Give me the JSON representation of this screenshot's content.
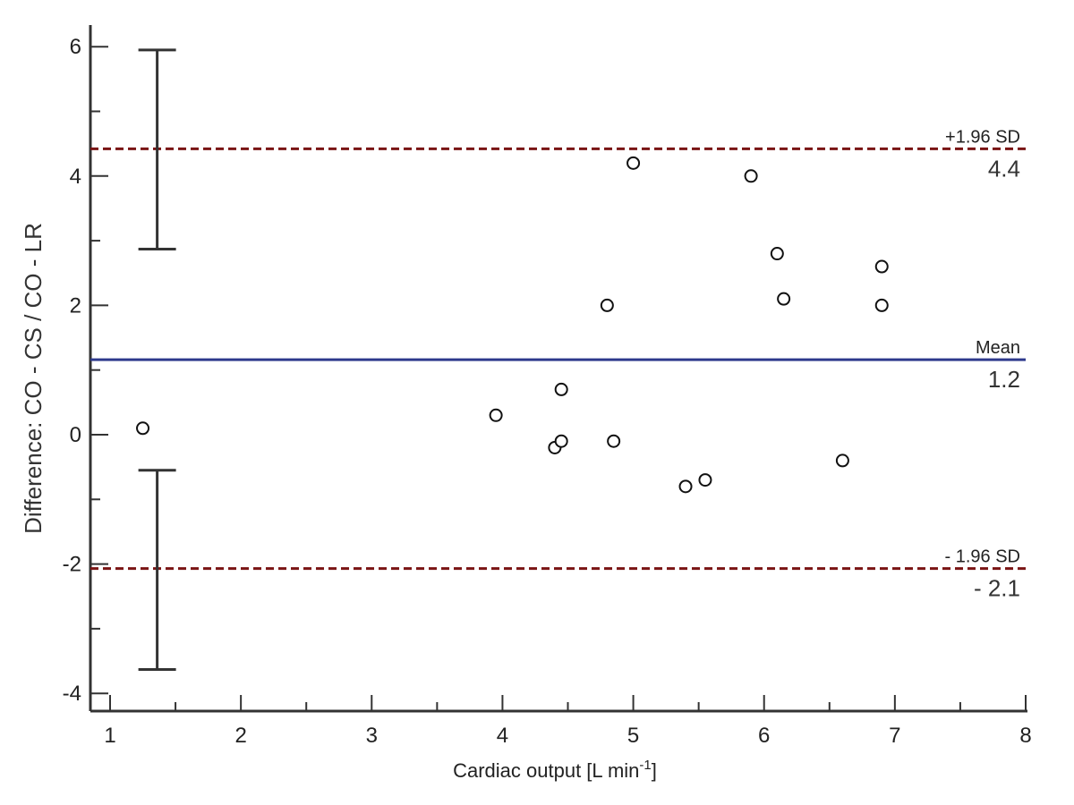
{
  "chart_data": {
    "type": "scatter",
    "xlabel": "Cardiac output  [L min",
    "xlabel_sup": "-1",
    "xlabel_close": "]",
    "ylabel": "Difference: CO - CS / CO - LR",
    "xlim": [
      1,
      8
    ],
    "ylim": [
      -4.3,
      6.5
    ],
    "x_ticks": [
      "1",
      "2",
      "3",
      "4",
      "5",
      "6",
      "7",
      "8"
    ],
    "y_ticks": [
      "-4",
      "-2",
      "0",
      "2",
      "4",
      "6"
    ],
    "points": [
      {
        "x": 1.25,
        "y": 0.1
      },
      {
        "x": 3.95,
        "y": 0.3
      },
      {
        "x": 4.4,
        "y": -0.2
      },
      {
        "x": 4.45,
        "y": -0.1
      },
      {
        "x": 4.45,
        "y": 0.7
      },
      {
        "x": 4.8,
        "y": 2.0
      },
      {
        "x": 4.85,
        "y": -0.1
      },
      {
        "x": 5.0,
        "y": 4.2
      },
      {
        "x": 5.4,
        "y": -0.8
      },
      {
        "x": 5.55,
        "y": -0.7
      },
      {
        "x": 5.9,
        "y": 4.0
      },
      {
        "x": 6.1,
        "y": 2.8
      },
      {
        "x": 6.15,
        "y": 2.1
      },
      {
        "x": 6.6,
        "y": -0.4
      },
      {
        "x": 6.9,
        "y": 2.6
      },
      {
        "x": 6.9,
        "y": 2.0
      }
    ],
    "mean": {
      "label": "Mean",
      "value": 1.16,
      "value_label": "1.2",
      "color": "#2e3a8c"
    },
    "upper_loa": {
      "label": "+1.96 SD",
      "value": 4.42,
      "value_label": "4.4",
      "color": "#7a1414"
    },
    "lower_loa": {
      "label": "- 1.96 SD",
      "value": -2.07,
      "value_label": "- 2.1",
      "color": "#7a1414"
    },
    "ci_bars": [
      {
        "x": 1.36,
        "low": 2.87,
        "high": 5.95
      },
      {
        "x": 1.36,
        "low": -3.63,
        "high": -0.55
      }
    ],
    "grid": false
  }
}
